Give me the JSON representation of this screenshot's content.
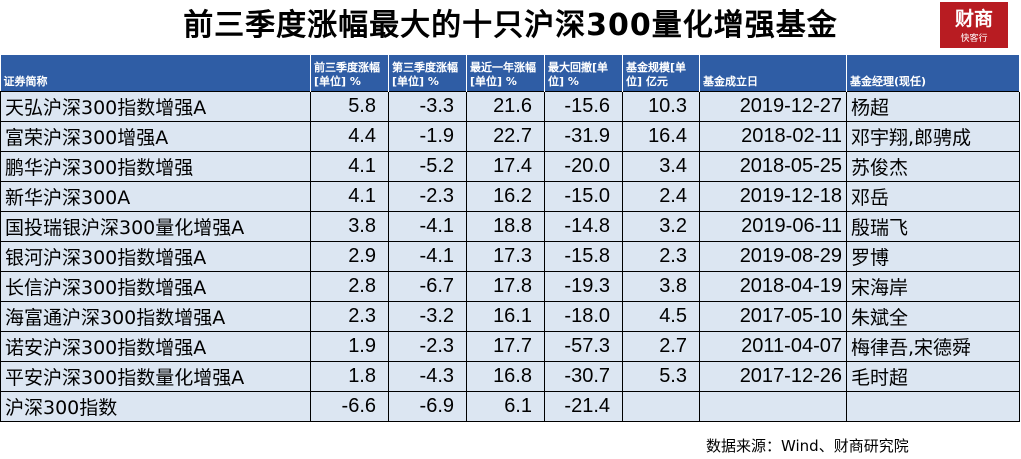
{
  "title": "前三季度涨幅最大的十只沪深300量化增强基金",
  "logo": {
    "main": "财商",
    "sub": "快客行"
  },
  "columns": [
    "证券简称",
    "前三季度涨幅[单位] %",
    "第三季度涨幅[单位] %",
    "最近一年涨幅[单位] %",
    "最大回撤[单位] %",
    "基金规模[单位] 亿元",
    "基金成立日",
    "基金经理(现任)"
  ],
  "rows": [
    {
      "name": "天弘沪深300指数增强A",
      "ytd": "5.8",
      "q3": "-3.3",
      "y1": "21.6",
      "mdd": "-15.6",
      "size": "10.3",
      "date": "2019-12-27",
      "manager": "杨超"
    },
    {
      "name": "富荣沪深300增强A",
      "ytd": "4.4",
      "q3": "-1.9",
      "y1": "22.7",
      "mdd": "-31.9",
      "size": "16.4",
      "date": "2018-02-11",
      "manager": "邓宇翔,郎骋成"
    },
    {
      "name": "鹏华沪深300指数增强",
      "ytd": "4.1",
      "q3": "-5.2",
      "y1": "17.4",
      "mdd": "-20.0",
      "size": "3.4",
      "date": "2018-05-25",
      "manager": "苏俊杰"
    },
    {
      "name": "新华沪深300A",
      "ytd": "4.1",
      "q3": "-2.3",
      "y1": "16.2",
      "mdd": "-15.0",
      "size": "2.4",
      "date": "2019-12-18",
      "manager": "邓岳"
    },
    {
      "name": "国投瑞银沪深300量化增强A",
      "ytd": "3.8",
      "q3": "-4.1",
      "y1": "18.8",
      "mdd": "-14.8",
      "size": "3.2",
      "date": "2019-06-11",
      "manager": "殷瑞飞"
    },
    {
      "name": "银河沪深300指数增强A",
      "ytd": "2.9",
      "q3": "-4.1",
      "y1": "17.3",
      "mdd": "-15.8",
      "size": "2.3",
      "date": "2019-08-29",
      "manager": "罗博"
    },
    {
      "name": "长信沪深300指数增强A",
      "ytd": "2.8",
      "q3": "-6.7",
      "y1": "17.8",
      "mdd": "-19.3",
      "size": "3.8",
      "date": "2018-04-19",
      "manager": "宋海岸"
    },
    {
      "name": "海富通沪深300指数增强A",
      "ytd": "2.3",
      "q3": "-3.2",
      "y1": "16.1",
      "mdd": "-18.0",
      "size": "4.5",
      "date": "2017-05-10",
      "manager": "朱斌全"
    },
    {
      "name": "诺安沪深300指数增强A",
      "ytd": "1.9",
      "q3": "-2.3",
      "y1": "17.7",
      "mdd": "-57.3",
      "size": "2.7",
      "date": "2011-04-07",
      "manager": "梅律吾,宋德舜"
    },
    {
      "name": "平安沪深300指数量化增强A",
      "ytd": "1.8",
      "q3": "-4.3",
      "y1": "16.8",
      "mdd": "-30.7",
      "size": "5.3",
      "date": "2017-12-26",
      "manager": "毛时超"
    },
    {
      "name": "沪深300指数",
      "ytd": "-6.6",
      "q3": "-6.9",
      "y1": "6.1",
      "mdd": "-21.4",
      "size": "",
      "date": "",
      "manager": ""
    }
  ],
  "source": "数据来源：Wind、财商研究院"
}
